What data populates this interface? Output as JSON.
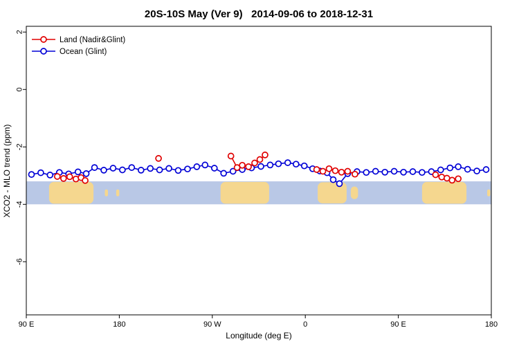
{
  "chart_data": {
    "type": "line",
    "title": "20S-10S May (Ver 9)   2014-09-06 to 2018-12-31",
    "xlabel": "Longitude (deg E)",
    "ylabel": "XCO2 - MLO trend (ppm)",
    "xlim": [
      90,
      540
    ],
    "ylim": [
      -7.85,
      2.2
    ],
    "grid": false,
    "x_ticks": [
      {
        "value": 90,
        "label": "90 E"
      },
      {
        "value": 180,
        "label": "180"
      },
      {
        "value": 270,
        "label": "90 W"
      },
      {
        "value": 360,
        "label": "0"
      },
      {
        "value": 450,
        "label": "90 E"
      },
      {
        "value": 540,
        "label": "180"
      }
    ],
    "y_ticks": [
      {
        "value": 2,
        "label": "2"
      },
      {
        "value": 0,
        "label": "0"
      },
      {
        "value": -2,
        "label": "-2"
      },
      {
        "value": -4,
        "label": "-4"
      },
      {
        "value": -6,
        "label": "-6"
      }
    ],
    "legend": {
      "position": "top-left",
      "entries": [
        {
          "label": "Land (Nadir&Glint)",
          "color": "#e00000",
          "series": "land"
        },
        {
          "label": "Ocean (Glint)",
          "color": "#0000d6",
          "series": "ocean"
        }
      ]
    },
    "map_band": {
      "description": "world-map strip for latitude band 20S-10S",
      "ocean_color": "#b9c8e6",
      "land_color": "#f5d78f",
      "y_top": -3.2,
      "y_bottom": -4.0,
      "land_patches": [
        {
          "name": "australia-west-pass",
          "lon_start": 112,
          "lon_end": 155,
          "height_frac": 0.95
        },
        {
          "name": "new-caledonia",
          "lon_start": 166,
          "lon_end": 169,
          "height_frac": 0.3
        },
        {
          "name": "fiji",
          "lon_start": 177,
          "lon_end": 180,
          "height_frac": 0.3
        },
        {
          "name": "south-america",
          "lon_start": 278,
          "lon_end": 325,
          "height_frac": 0.95
        },
        {
          "name": "africa",
          "lon_start": 372,
          "lon_end": 400,
          "height_frac": 0.92
        },
        {
          "name": "madagascar",
          "lon_start": 404,
          "lon_end": 411,
          "height_frac": 0.55
        },
        {
          "name": "australia-east-pass",
          "lon_start": 473,
          "lon_end": 516,
          "height_frac": 0.95
        },
        {
          "name": "fiji-east-pass",
          "lon_start": 536,
          "lon_end": 539,
          "height_frac": 0.3
        }
      ]
    },
    "series": [
      {
        "name": "ocean",
        "label": "Ocean (Glint)",
        "color": "#0000d6",
        "marker": "open-circle",
        "gap_threshold": 30,
        "points": [
          [
            95,
            -2.96
          ],
          [
            104,
            -2.9
          ],
          [
            113,
            -2.98
          ],
          [
            122,
            -2.89
          ],
          [
            131,
            -2.94
          ],
          [
            140,
            -2.87
          ],
          [
            148,
            -2.93
          ],
          [
            156,
            -2.72
          ],
          [
            165,
            -2.81
          ],
          [
            174,
            -2.74
          ],
          [
            183,
            -2.8
          ],
          [
            192,
            -2.72
          ],
          [
            201,
            -2.81
          ],
          [
            210,
            -2.75
          ],
          [
            219,
            -2.8
          ],
          [
            228,
            -2.75
          ],
          [
            237,
            -2.82
          ],
          [
            246,
            -2.77
          ],
          [
            255,
            -2.69
          ],
          [
            263,
            -2.63
          ],
          [
            272,
            -2.74
          ],
          [
            281,
            -2.92
          ],
          [
            290,
            -2.85
          ],
          [
            299,
            -2.79
          ],
          [
            308,
            -2.73
          ],
          [
            317,
            -2.68
          ],
          [
            326,
            -2.63
          ],
          [
            334,
            -2.59
          ],
          [
            343,
            -2.55
          ],
          [
            351,
            -2.6
          ],
          [
            359,
            -2.66
          ],
          [
            367,
            -2.76
          ],
          [
            374,
            -2.84
          ],
          [
            381,
            -2.9
          ],
          [
            387,
            -3.14
          ],
          [
            393,
            -3.28
          ],
          [
            401,
            -2.93
          ],
          [
            410,
            -2.86
          ],
          [
            419,
            -2.89
          ],
          [
            428,
            -2.85
          ],
          [
            437,
            -2.88
          ],
          [
            446,
            -2.85
          ],
          [
            455,
            -2.88
          ],
          [
            464,
            -2.86
          ],
          [
            473,
            -2.89
          ],
          [
            482,
            -2.86
          ],
          [
            491,
            -2.8
          ],
          [
            500,
            -2.73
          ],
          [
            508,
            -2.69
          ],
          [
            517,
            -2.78
          ],
          [
            526,
            -2.84
          ],
          [
            535,
            -2.79
          ]
        ]
      },
      {
        "name": "land",
        "label": "Land (Nadir&Glint)",
        "color": "#e00000",
        "marker": "open-circle",
        "gap_threshold": 20,
        "points": [
          [
            120,
            -3.03
          ],
          [
            126,
            -3.1
          ],
          [
            132,
            -3.04
          ],
          [
            138,
            -3.12
          ],
          [
            143,
            -3.07
          ],
          [
            147,
            -3.17
          ],
          [
            218,
            -2.4
          ],
          [
            288,
            -2.32
          ],
          [
            294,
            -2.72
          ],
          [
            299,
            -2.64
          ],
          [
            305,
            -2.69
          ],
          [
            311,
            -2.56
          ],
          [
            316,
            -2.44
          ],
          [
            321,
            -2.28
          ],
          [
            371,
            -2.79
          ],
          [
            377,
            -2.85
          ],
          [
            383,
            -2.76
          ],
          [
            389,
            -2.83
          ],
          [
            395,
            -2.88
          ],
          [
            401,
            -2.85
          ],
          [
            408,
            -2.95
          ],
          [
            486,
            -2.97
          ],
          [
            492,
            -3.05
          ],
          [
            497,
            -3.09
          ],
          [
            502,
            -3.16
          ],
          [
            508,
            -3.11
          ]
        ]
      }
    ]
  }
}
